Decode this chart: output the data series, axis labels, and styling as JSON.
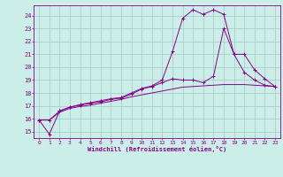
{
  "bg_color": "#cceee8",
  "grid_color": "#aacccc",
  "line_color": "#880088",
  "xlabel": "Windchill (Refroidissement éolien,°C)",
  "xlim": [
    -0.5,
    23.5
  ],
  "ylim": [
    14.5,
    24.8
  ],
  "yticks": [
    15,
    16,
    17,
    18,
    19,
    20,
    21,
    22,
    23,
    24
  ],
  "xticks": [
    0,
    1,
    2,
    3,
    4,
    5,
    6,
    7,
    8,
    9,
    10,
    11,
    12,
    13,
    14,
    15,
    16,
    17,
    18,
    19,
    20,
    21,
    22,
    23
  ],
  "line1_x": [
    0,
    1,
    2,
    3,
    4,
    5,
    6,
    7,
    8,
    9,
    10,
    11,
    12,
    13,
    14,
    15,
    16,
    17,
    18,
    19,
    20,
    21,
    22,
    23
  ],
  "line1_y": [
    15.9,
    14.8,
    16.6,
    16.9,
    17.1,
    17.25,
    17.4,
    17.55,
    17.65,
    18.0,
    18.35,
    18.55,
    19.0,
    21.2,
    23.8,
    24.45,
    24.1,
    24.45,
    24.1,
    21.0,
    19.6,
    19.0,
    18.6,
    18.5
  ],
  "line2_x": [
    0,
    1,
    2,
    3,
    4,
    5,
    6,
    7,
    8,
    9,
    10,
    11,
    12,
    13,
    14,
    15,
    16,
    17,
    18,
    19,
    20,
    21,
    22,
    23
  ],
  "line2_y": [
    15.9,
    15.9,
    16.5,
    16.8,
    16.95,
    17.05,
    17.2,
    17.35,
    17.5,
    17.7,
    17.85,
    18.0,
    18.15,
    18.3,
    18.45,
    18.5,
    18.55,
    18.6,
    18.65,
    18.65,
    18.65,
    18.6,
    18.55,
    18.5
  ],
  "line3_x": [
    0,
    1,
    2,
    3,
    4,
    5,
    6,
    7,
    8,
    9,
    10,
    11,
    12,
    13,
    14,
    15,
    16,
    17,
    18,
    19,
    20,
    21,
    22,
    23
  ],
  "line3_y": [
    15.9,
    15.9,
    16.6,
    16.9,
    17.05,
    17.2,
    17.3,
    17.5,
    17.6,
    17.9,
    18.3,
    18.5,
    18.8,
    19.1,
    19.0,
    19.0,
    18.8,
    19.3,
    23.0,
    21.0,
    21.0,
    19.8,
    19.1,
    18.5
  ]
}
